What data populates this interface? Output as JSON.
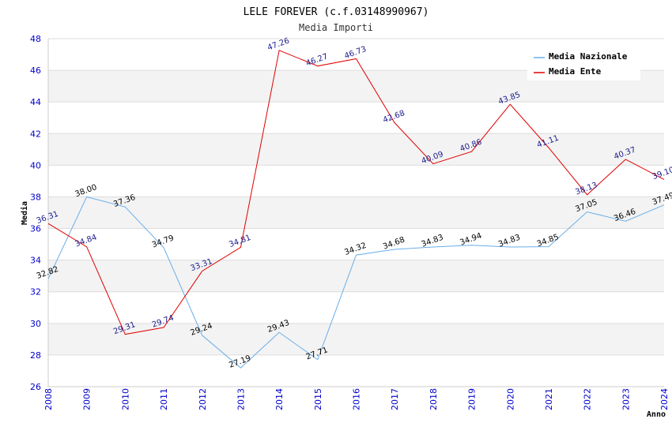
{
  "chart_data": {
    "type": "line",
    "title": "LELE FOREVER (c.f.03148990967)",
    "subtitle": "Media Importi",
    "xlabel": "Anno",
    "ylabel": "Media",
    "ylim": [
      26,
      48
    ],
    "yticks": [
      26,
      28,
      30,
      32,
      34,
      36,
      38,
      40,
      42,
      44,
      46,
      48
    ],
    "categories": [
      "2008",
      "2009",
      "2010",
      "2011",
      "2012",
      "2013",
      "2014",
      "2015",
      "2016",
      "2017",
      "2018",
      "2019",
      "2020",
      "2021",
      "2022",
      "2023",
      "2024"
    ],
    "grid": "horizontal bands",
    "legend_position": "top-right",
    "series": [
      {
        "name": "Media Nazionale",
        "color": "#6aaee8",
        "values": [
          32.82,
          38.0,
          37.36,
          34.79,
          29.24,
          27.19,
          29.43,
          27.71,
          34.32,
          34.68,
          34.83,
          34.94,
          34.83,
          34.85,
          37.05,
          36.46,
          37.49
        ],
        "labels": [
          "32.82",
          "38.00",
          "37.36",
          "34.79",
          "29.24",
          "27.19",
          "29.43",
          "27.71",
          "34.32",
          "34.68",
          "34.83",
          "34.94",
          "34.83",
          "34.85",
          "37.05",
          "36.46",
          "37.49"
        ]
      },
      {
        "name": "Media Ente",
        "color": "#e00000",
        "values": [
          36.31,
          34.84,
          29.31,
          29.74,
          33.31,
          34.81,
          47.26,
          46.27,
          46.73,
          42.68,
          40.09,
          40.86,
          43.85,
          41.11,
          38.13,
          40.37,
          39.1
        ],
        "labels": [
          "36.31",
          "34.84",
          "29.31",
          "29.74",
          "33.31",
          "34.81",
          "47.26",
          "46.27",
          "46.73",
          "42.68",
          "40.09",
          "40.86",
          "43.85",
          "41.11",
          "38.13",
          "40.37",
          "39.10"
        ]
      }
    ]
  }
}
